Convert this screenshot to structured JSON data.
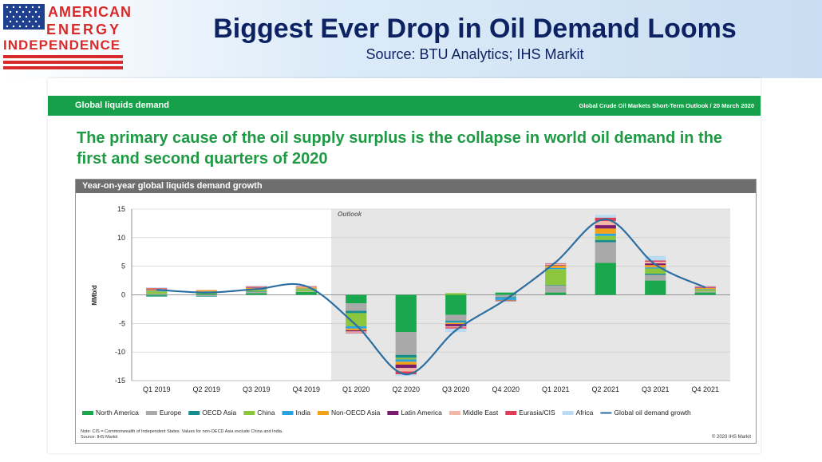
{
  "header": {
    "logo_line1": "AMERICAN",
    "logo_line2": "ENERGY",
    "logo_line3": "INDEPENDENCE",
    "title": "Biggest Ever Drop in Oil Demand Looms",
    "source": "Source: BTU Analytics; IHS Markit"
  },
  "slide": {
    "section": "Global liquids demand",
    "report": "Global Crude Oil Markets Short-Term Outlook / 20 March 2020",
    "headline": "The primary cause of the oil supply surplus is the collapse in world oil demand in the first and second quarters of 2020",
    "chart_title": "Year-on-year global liquids demand growth",
    "note_line1": "Note: CIS = Commonwealth of Independent States. Values for non-OECD Asia exclude China and India.",
    "note_line2": "Source: IHS Markit",
    "copyright": "© 2020 IHS Markit"
  },
  "colors": {
    "header_title": "#0d2263",
    "green_band": "#16a04a",
    "headline": "#1f9a44"
  },
  "chart_data": {
    "type": "bar",
    "stacked": true,
    "ylabel": "MMb/d",
    "ylim": [
      -15,
      15
    ],
    "yticks": [
      15,
      10,
      5,
      0,
      -5,
      -10,
      -15
    ],
    "grid": true,
    "outlook_label": "Outlook",
    "outlook_start_index": 4,
    "legend_position": "bottom",
    "categories": [
      "Q1 2019",
      "Q2 2019",
      "Q3 2019",
      "Q4 2019",
      "Q1 2020",
      "Q2 2020",
      "Q3 2020",
      "Q4 2020",
      "Q1 2021",
      "Q2 2021",
      "Q3 2021",
      "Q4 2021"
    ],
    "series": [
      {
        "name": "North America",
        "color": "#1aa84f",
        "values": [
          -0.2,
          0.2,
          0.3,
          0.5,
          -1.5,
          -6.5,
          -3.5,
          0.4,
          0.4,
          5.6,
          2.5,
          0.4
        ]
      },
      {
        "name": "Europe",
        "color": "#a9a9a9",
        "values": [
          0.2,
          -0.2,
          0.2,
          0.1,
          -1.3,
          -4.0,
          -1.0,
          -0.4,
          1.2,
          3.6,
          1.0,
          0.2
        ]
      },
      {
        "name": "OECD Asia",
        "color": "#138d8d",
        "values": [
          -0.1,
          -0.1,
          0.1,
          0.0,
          -0.4,
          -0.5,
          -0.2,
          -0.1,
          0.1,
          0.4,
          0.2,
          0.0
        ]
      },
      {
        "name": "China",
        "color": "#8cc63f",
        "values": [
          0.4,
          0.3,
          0.3,
          0.4,
          -2.3,
          -0.3,
          0.3,
          0.0,
          2.8,
          0.7,
          0.9,
          0.3
        ]
      },
      {
        "name": "India",
        "color": "#29a3e0",
        "values": [
          0.1,
          0.1,
          0.1,
          0.1,
          -0.4,
          -0.4,
          -0.2,
          -0.4,
          0.2,
          0.4,
          0.2,
          0.1
        ]
      },
      {
        "name": "Non-OECD Asia",
        "color": "#f4a11a",
        "values": [
          0.2,
          0.2,
          0.2,
          0.2,
          -0.3,
          -0.5,
          -0.2,
          -0.1,
          0.4,
          0.9,
          0.4,
          0.2
        ]
      },
      {
        "name": "Latin America",
        "color": "#7a1c6e",
        "values": [
          0.1,
          0.0,
          0.1,
          0.0,
          -0.2,
          -0.6,
          -0.4,
          -0.1,
          0.1,
          0.6,
          0.3,
          0.1
        ]
      },
      {
        "name": "Middle East",
        "color": "#f4b6a6",
        "values": [
          0.1,
          0.1,
          0.1,
          0.1,
          -0.2,
          -0.6,
          -0.2,
          0.0,
          0.2,
          0.7,
          0.3,
          0.1
        ]
      },
      {
        "name": "Eurasia/CIS",
        "color": "#e03c55",
        "values": [
          0.1,
          0.0,
          0.1,
          0.1,
          -0.1,
          -0.5,
          -0.2,
          0.0,
          0.1,
          0.6,
          0.2,
          0.1
        ]
      },
      {
        "name": "Africa",
        "color": "#b9dcf3",
        "values": [
          0.1,
          0.0,
          0.1,
          0.1,
          -0.1,
          -0.3,
          -0.6,
          -0.1,
          0.1,
          0.5,
          0.8,
          0.1
        ]
      }
    ],
    "line_series": {
      "name": "Global oil demand growth",
      "color": "#2c6ea0",
      "values": [
        0.9,
        0.4,
        1.0,
        1.5,
        -5.3,
        -13.9,
        -6.2,
        -0.8,
        5.7,
        13.2,
        5.3,
        1.3
      ]
    }
  }
}
